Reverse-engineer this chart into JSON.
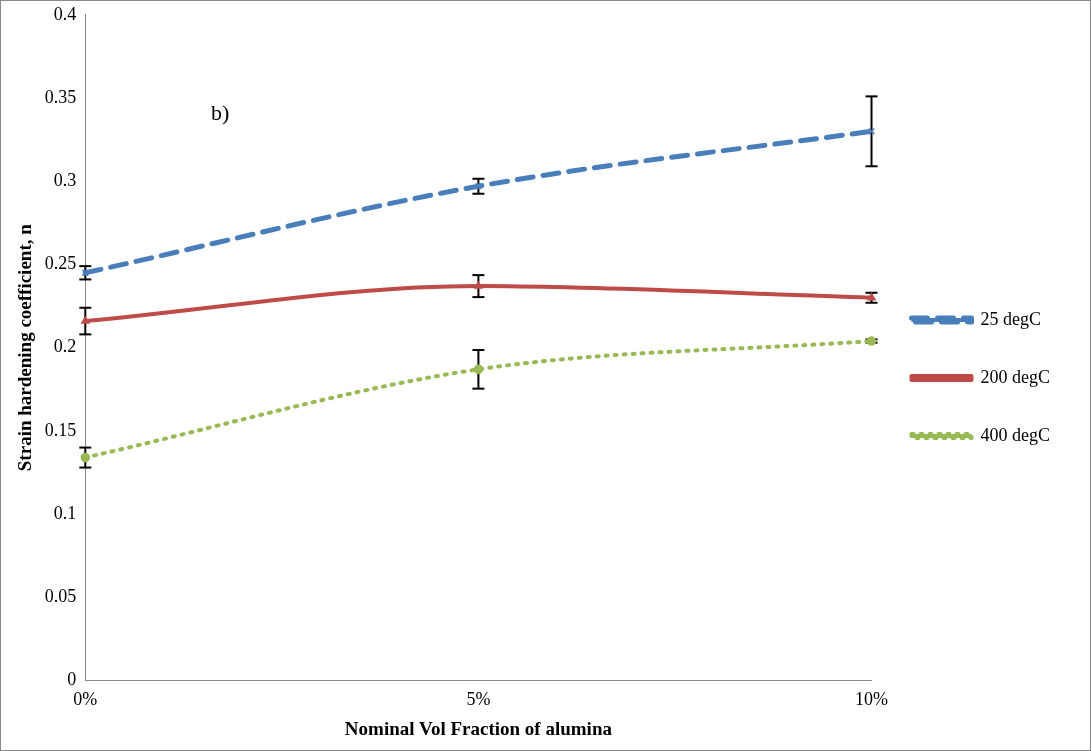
{
  "chart_data": {
    "type": "line",
    "xlabel": "Nominal Vol Fraction of alumina",
    "ylabel": "Strain hardening coefficient, n",
    "categories": [
      "0%",
      "5%",
      "10%"
    ],
    "series": [
      {
        "name": "25 degC",
        "color": "#4a7ebb",
        "values": [
          0.245,
          0.297,
          0.33
        ],
        "errors": [
          0.004,
          0.0045,
          0.021
        ],
        "marker": "cross",
        "line_style": "dashed"
      },
      {
        "name": "200 degC",
        "color": "#be4b48",
        "values": [
          0.216,
          0.237,
          0.23
        ],
        "errors": [
          0.008,
          0.0066,
          0.003
        ],
        "marker": "triangle",
        "line_style": "solid"
      },
      {
        "name": "400 degC",
        "color": "#98b954",
        "values": [
          0.134,
          0.187,
          0.204
        ],
        "errors": [
          0.006,
          0.0116,
          0.001
        ],
        "marker": "circle",
        "line_style": "dotted"
      }
    ],
    "ylim": [
      0,
      0.4
    ],
    "yticks": [
      0,
      0.05,
      0.1,
      0.15,
      0.2,
      0.25,
      0.3,
      0.35,
      0.4
    ],
    "grid": false,
    "legend": "right",
    "annotations": [
      "b)"
    ]
  }
}
